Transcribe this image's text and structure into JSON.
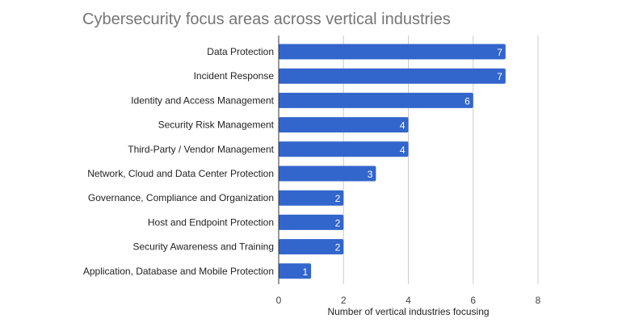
{
  "chart_data": {
    "type": "bar",
    "orientation": "horizontal",
    "title": "Cybersecurity focus areas across vertical industries",
    "xlabel": "Number of vertical industries focusing",
    "ylabel": "",
    "categories": [
      "Data Protection",
      "Incident Response",
      "Identity and Access Management",
      "Security Risk Management",
      "Third-Party / Vendor Management",
      "Network, Cloud and Data Center Protection",
      "Governance, Compliance and Organization",
      "Host and Endpoint Protection",
      "Security Awareness and Training",
      "Application, Database and Mobile Protection"
    ],
    "values": [
      7,
      7,
      6,
      4,
      4,
      3,
      2,
      2,
      2,
      1
    ],
    "xlim": [
      0,
      8
    ],
    "xticks": [
      "0",
      "2",
      "4",
      "6",
      "8"
    ],
    "grid": true,
    "legend": "none",
    "data_labels": true,
    "colors": {
      "bar": "#3366cc",
      "grid": "#cccccc",
      "axis": "#333333",
      "label_text": "#222222",
      "tick_text": "#444444",
      "title_text": "#757575",
      "bar_label": "#ffffff"
    }
  }
}
